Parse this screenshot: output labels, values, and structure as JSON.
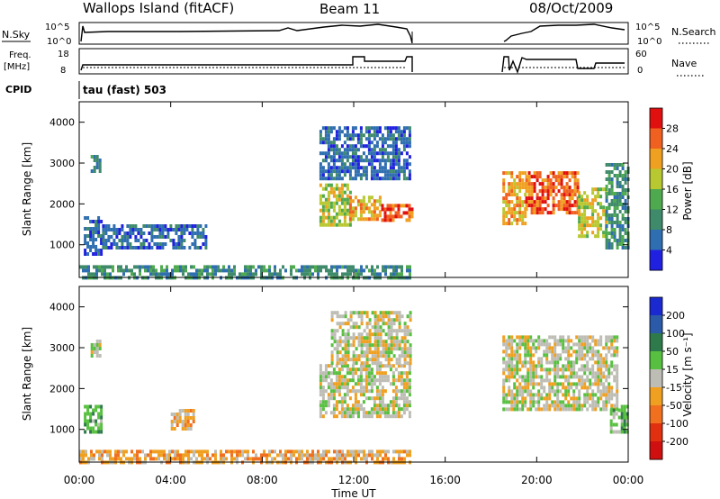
{
  "header": {
    "title": "Wallops Island (fitACF)",
    "beam": "Beam 11",
    "date": "08/Oct/2009"
  },
  "status_panels": {
    "nsky_label": "N.Sky",
    "nsearch_label": "N.Search",
    "freq_label_line1": "Freq.",
    "freq_label_line2": "[MHz]",
    "nave_label": "Nave",
    "cpid_label": "CPID",
    "cpid_value": "tau (fast) 503",
    "nsky_ticks": [
      "10^5",
      "10^0"
    ],
    "nsearch_ticks": [
      "10^5",
      "10^0"
    ],
    "freq_ticks": [
      "18",
      "8"
    ],
    "nave_ticks": [
      "60",
      "0"
    ]
  },
  "colors": {
    "power_scale": [
      "#2020e0",
      "#2f6eb0",
      "#3f8a6a",
      "#4faa4f",
      "#b8c830",
      "#f0a020",
      "#f06020",
      "#e01010"
    ],
    "velocity_scale": [
      "#1a2ad0",
      "#2a5aa8",
      "#2f7a4a",
      "#58c040",
      "#bdbdb5",
      "#f0a020",
      "#f07020",
      "#e03010",
      "#d01010"
    ]
  },
  "chart_data": [
    {
      "type": "heatmap",
      "panel": "power",
      "xlabel": "",
      "ylabel": "Slant Range [km]",
      "yticks": [
        "1000",
        "2000",
        "3000",
        "4000"
      ],
      "ylim": [
        200,
        4500
      ],
      "colorbar_label": "Power [dB]",
      "colorbar_ticks": [
        "4",
        "8",
        "12",
        "16",
        "20",
        "24",
        "28"
      ],
      "regions": [
        {
          "t": [
            0.2,
            1.0
          ],
          "r": [
            800,
            1700
          ],
          "level": 1
        },
        {
          "t": [
            0.5,
            0.9
          ],
          "r": [
            2800,
            3200
          ],
          "level": 2
        },
        {
          "t": [
            1.0,
            5.5
          ],
          "r": [
            900,
            1500
          ],
          "level": 1
        },
        {
          "t": [
            0.0,
            14.5
          ],
          "r": [
            200,
            500
          ],
          "level": 2
        },
        {
          "t": [
            10.5,
            11.8
          ],
          "r": [
            1500,
            2500
          ],
          "level": 4
        },
        {
          "t": [
            11.8,
            13.2
          ],
          "r": [
            1600,
            2200
          ],
          "level": 5
        },
        {
          "t": [
            13.2,
            14.5
          ],
          "r": [
            1600,
            2000
          ],
          "level": 6
        },
        {
          "t": [
            10.5,
            14.5
          ],
          "r": [
            2600,
            3900
          ],
          "level": 1
        },
        {
          "t": [
            18.5,
            19.5
          ],
          "r": [
            1500,
            2800
          ],
          "level": 5
        },
        {
          "t": [
            19.5,
            21.8
          ],
          "r": [
            1800,
            2800
          ],
          "level": 6
        },
        {
          "t": [
            21.8,
            23.0
          ],
          "r": [
            1200,
            2400
          ],
          "level": 4
        },
        {
          "t": [
            23.0,
            24.0
          ],
          "r": [
            900,
            3000
          ],
          "level": 2
        }
      ]
    },
    {
      "type": "heatmap",
      "panel": "velocity",
      "xlabel": "Time UT",
      "ylabel": "Slant Range [km]",
      "xticks": [
        "00:00",
        "04:00",
        "08:00",
        "12:00",
        "16:00",
        "20:00",
        "00:00"
      ],
      "yticks": [
        "1000",
        "2000",
        "3000",
        "4000"
      ],
      "ylim": [
        200,
        4500
      ],
      "colorbar_label": "Velocity [m s⁻¹]",
      "colorbar_ticks": [
        "200",
        "100",
        "50",
        "15",
        "-15",
        "-50",
        "-100",
        "-200"
      ],
      "regions": [
        {
          "t": [
            0.2,
            1.0
          ],
          "r": [
            900,
            1600
          ],
          "level": 3
        },
        {
          "t": [
            0.5,
            0.9
          ],
          "r": [
            2800,
            3200
          ],
          "level": 4
        },
        {
          "t": [
            4.0,
            5.0
          ],
          "r": [
            1000,
            1500
          ],
          "level": 5
        },
        {
          "t": [
            0.0,
            14.5
          ],
          "r": [
            200,
            500
          ],
          "level": 5
        },
        {
          "t": [
            10.5,
            14.5
          ],
          "r": [
            1300,
            2600
          ],
          "level": 4
        },
        {
          "t": [
            11.0,
            14.5
          ],
          "r": [
            2600,
            3900
          ],
          "level": 4
        },
        {
          "t": [
            18.5,
            23.5
          ],
          "r": [
            1500,
            3300
          ],
          "level": 4
        },
        {
          "t": [
            23.2,
            24.0
          ],
          "r": [
            900,
            1600
          ],
          "level": 3
        }
      ]
    }
  ]
}
